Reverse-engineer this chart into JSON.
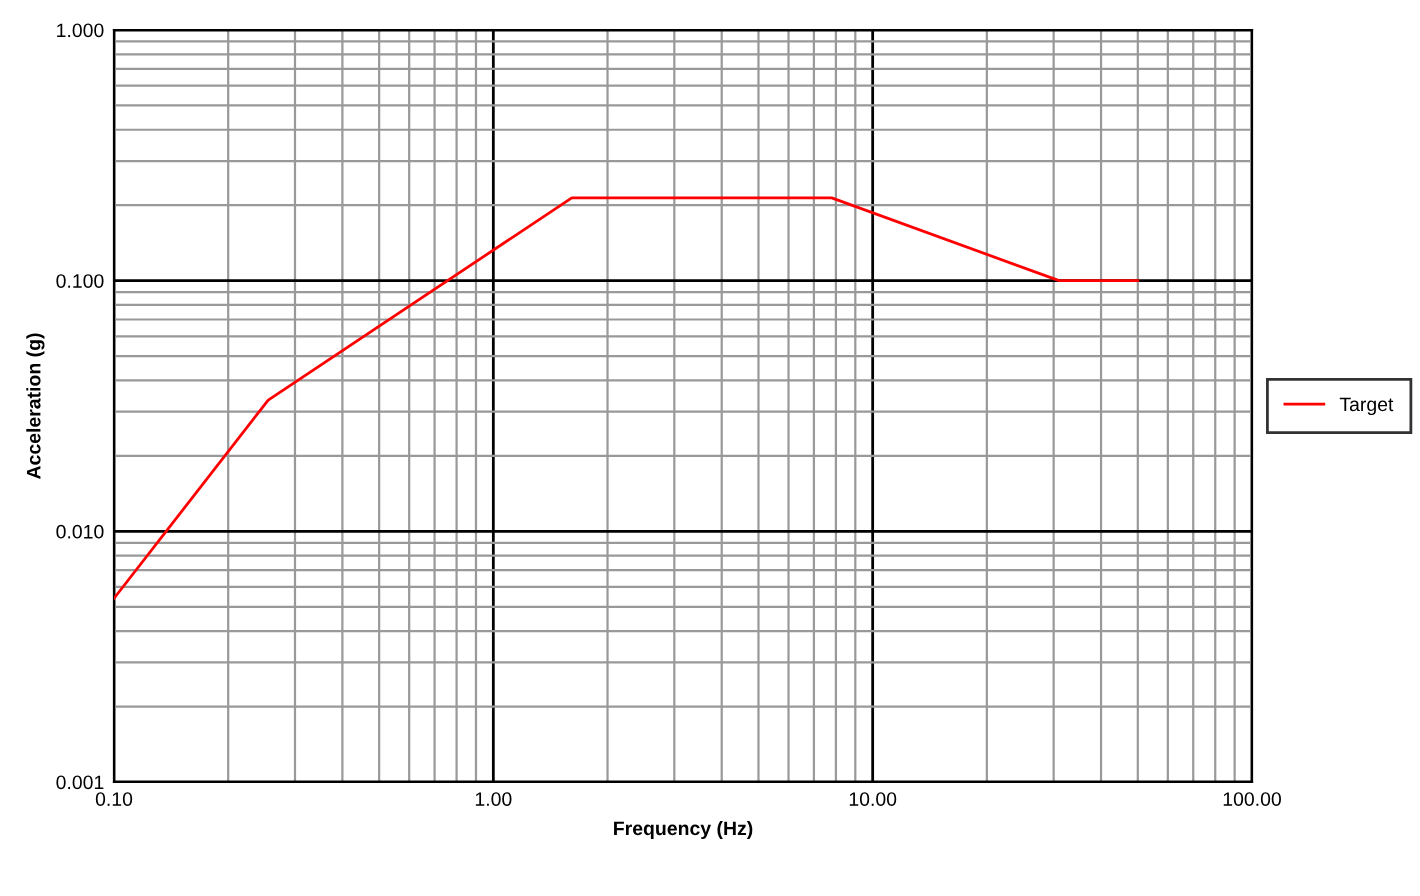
{
  "chart_data": {
    "type": "line",
    "xlabel": "Frequency (Hz)",
    "ylabel": "Acceleration (g)",
    "log": "xy",
    "grid": true,
    "legend": "right",
    "marker": "none",
    "line_style": "solid",
    "xlim": [
      0.1,
      100
    ],
    "xticks": [
      {
        "value": 0.1,
        "label": "0.10"
      },
      {
        "value": 1,
        "label": "1.00"
      },
      {
        "value": 10,
        "label": "10.00"
      },
      {
        "value": 100,
        "label": "100.00"
      }
    ],
    "ylim": [
      0.001,
      1
    ],
    "yticks": [
      {
        "value": 0.001,
        "label": "0.001"
      },
      {
        "value": 0.01,
        "label": "0.010"
      },
      {
        "value": 0.1,
        "label": "0.100"
      },
      {
        "value": 1,
        "label": "1.000"
      }
    ],
    "series": [
      {
        "name": "Target",
        "color": "#ff0000",
        "x": [
          0.1,
          0.255,
          1.61,
          7.8,
          31,
          50
        ],
        "values": [
          0.0054,
          0.0334,
          0.214,
          0.214,
          0.1,
          0.1
        ]
      }
    ]
  }
}
